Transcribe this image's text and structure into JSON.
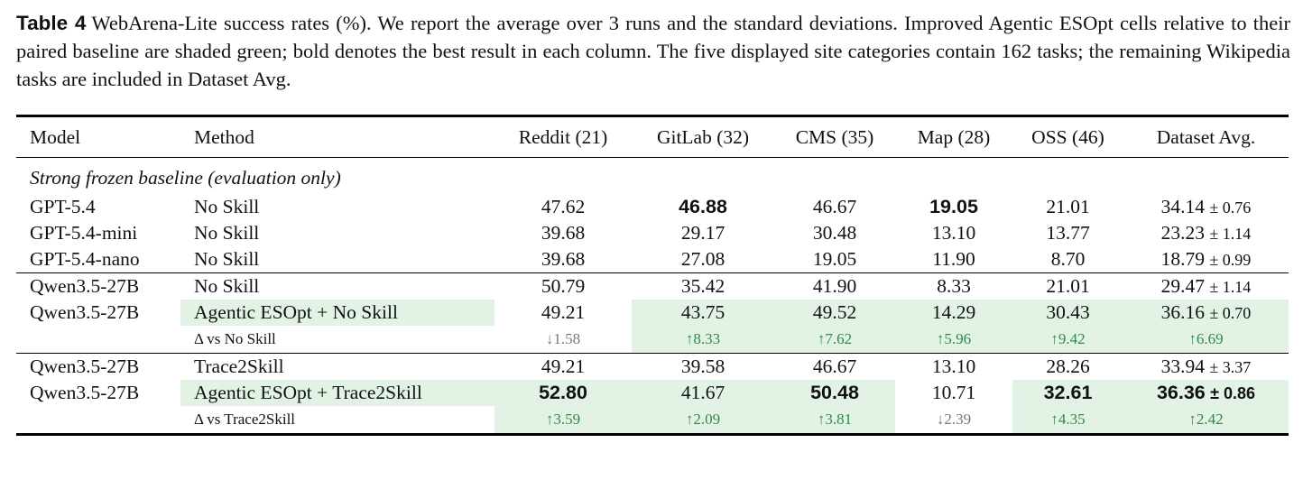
{
  "caption": {
    "label": "Table 4",
    "text": "WebArena-Lite success rates (%). We report the average over 3 runs and the standard deviations. Improved Agentic ESOpt cells relative to their paired baseline are shaded green; bold denotes the best result in each column. The five displayed site categories contain 162 tasks; the remaining Wikipedia tasks are included in Dataset Avg."
  },
  "table": {
    "header": [
      "Model",
      "Method",
      "Reddit (21)",
      "GitLab (32)",
      "CMS (35)",
      "Map (28)",
      "OSS (46)",
      "Dataset Avg."
    ],
    "groups": [
      {
        "title": "Strong frozen baseline (evaluation only)",
        "rows": [
          [
            "GPT-5.4",
            "No Skill",
            "47.62",
            "46.88",
            "46.67",
            "19.05",
            "21.01",
            "34.14",
            "± 0.76"
          ],
          [
            "GPT-5.4-mini",
            "No Skill",
            "39.68",
            "29.17",
            "30.48",
            "13.10",
            "13.77",
            "23.23",
            "± 1.14"
          ],
          [
            "GPT-5.4-nano",
            "No Skill",
            "39.68",
            "27.08",
            "19.05",
            "11.90",
            "8.70",
            "18.79",
            "± 0.99"
          ]
        ]
      },
      {
        "rows": [
          [
            "Qwen3.5-27B",
            "No Skill",
            "50.79",
            "35.42",
            "41.90",
            "8.33",
            "21.01",
            "29.47",
            "± 1.14"
          ],
          [
            "Qwen3.5-27B",
            "Agentic ESOpt + No Skill",
            "49.21",
            "43.75",
            "49.52",
            "14.29",
            "30.43",
            "36.16",
            "± 0.70"
          ],
          [
            "Δ vs No Skill",
            "↓1.58",
            "↑8.33",
            "↑7.62",
            "↑5.96",
            "↑9.42",
            "↑6.69"
          ]
        ]
      },
      {
        "rows": [
          [
            "Qwen3.5-27B",
            "Trace2Skill",
            "49.21",
            "39.58",
            "46.67",
            "13.10",
            "28.26",
            "33.94",
            "± 3.37"
          ],
          [
            "Qwen3.5-27B",
            "Agentic ESOpt + Trace2Skill",
            "52.80",
            "41.67",
            "50.48",
            "10.71",
            "32.61",
            "36.36",
            "± 0.86"
          ],
          [
            "Δ vs Trace2Skill",
            "↑3.59",
            "↑2.09",
            "↑3.81",
            "↓2.39",
            "↑4.35",
            "↑2.42"
          ]
        ]
      }
    ]
  }
}
